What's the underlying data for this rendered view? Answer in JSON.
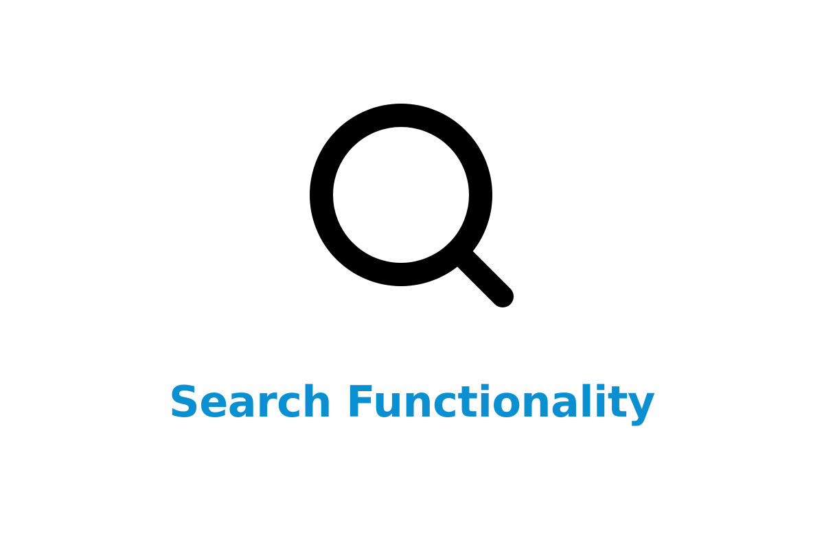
{
  "icon": {
    "name": "search-icon",
    "color": "#000000"
  },
  "title": {
    "text": "Search Functionality",
    "color": "#0a8fd0"
  },
  "background": "#ffffff"
}
